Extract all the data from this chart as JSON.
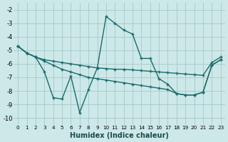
{
  "xlabel": "Humidex (Indice chaleur)",
  "background_color": "#cde8e8",
  "grid_color": "#aacccc",
  "line_color": "#1a6b6b",
  "xlim": [
    -0.5,
    23.5
  ],
  "ylim": [
    -10.5,
    -1.5
  ],
  "xticks": [
    0,
    1,
    2,
    3,
    4,
    5,
    6,
    7,
    8,
    9,
    10,
    11,
    12,
    13,
    14,
    15,
    16,
    17,
    18,
    19,
    20,
    21,
    22,
    23
  ],
  "yticks": [
    -10,
    -9,
    -8,
    -7,
    -6,
    -5,
    -4,
    -3,
    -2
  ],
  "curve_wiggly_x": [
    0,
    1,
    2,
    3,
    4,
    5,
    6,
    7,
    8,
    9,
    10,
    11,
    12,
    13,
    14,
    15,
    16,
    17,
    18,
    19,
    20,
    21,
    22,
    23
  ],
  "curve_wiggly_y": [
    -4.7,
    -5.2,
    -5.5,
    -6.6,
    -8.5,
    -8.6,
    -6.9,
    -9.6,
    -7.9,
    -6.3,
    -2.5,
    -3.0,
    -3.5,
    -3.8,
    -5.6,
    -5.6,
    -7.1,
    -7.5,
    -8.2,
    -8.3,
    -8.3,
    -8.1,
    -6.1,
    -5.7
  ],
  "curve_diagonal1_x": [
    0,
    1,
    2,
    3,
    4,
    5,
    6,
    7,
    8,
    9,
    10,
    11,
    12,
    13,
    14,
    15,
    16,
    17,
    18,
    19,
    20,
    21,
    22,
    23
  ],
  "curve_diagonal1_y": [
    -4.7,
    -5.2,
    -5.5,
    -5.7,
    -5.8,
    -5.9,
    -6.0,
    -6.1,
    -6.2,
    -6.3,
    -6.35,
    -6.4,
    -6.4,
    -6.45,
    -6.5,
    -6.55,
    -6.6,
    -6.65,
    -6.7,
    -6.75,
    -6.8,
    -6.85,
    -5.9,
    -5.5
  ],
  "curve_diagonal2_x": [
    0,
    1,
    2,
    3,
    4,
    5,
    6,
    7,
    8,
    9,
    10,
    11,
    12,
    13,
    14,
    15,
    16,
    17,
    18,
    19,
    20,
    21,
    22,
    23
  ],
  "curve_diagonal2_y": [
    -4.7,
    -5.2,
    -5.5,
    -5.8,
    -6.1,
    -6.4,
    -6.6,
    -6.8,
    -7.0,
    -7.1,
    -7.2,
    -7.3,
    -7.4,
    -7.5,
    -7.6,
    -7.7,
    -7.8,
    -7.9,
    -8.2,
    -8.3,
    -8.3,
    -8.1,
    -6.1,
    -5.7
  ]
}
